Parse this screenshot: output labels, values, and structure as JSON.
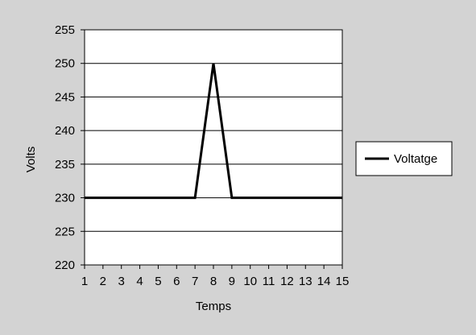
{
  "chart_data": {
    "type": "line",
    "title": "",
    "xlabel": "Temps",
    "ylabel": "Volts",
    "categories": [
      "1",
      "2",
      "3",
      "4",
      "5",
      "6",
      "7",
      "8",
      "9",
      "10",
      "11",
      "12",
      "13",
      "14",
      "15"
    ],
    "series": [
      {
        "name": "Voltatge",
        "values": [
          230,
          230,
          230,
          230,
          230,
          230,
          230,
          250,
          230,
          230,
          230,
          230,
          230,
          230,
          230
        ],
        "color": "#000000"
      }
    ],
    "ylim": [
      220,
      255
    ],
    "yticks": [
      "220",
      "225",
      "230",
      "235",
      "240",
      "245",
      "250",
      "255"
    ],
    "grid": "horizontal",
    "legend_position": "right",
    "background_color": "#d3d3d3",
    "plot_background_color": "#ffffff"
  }
}
